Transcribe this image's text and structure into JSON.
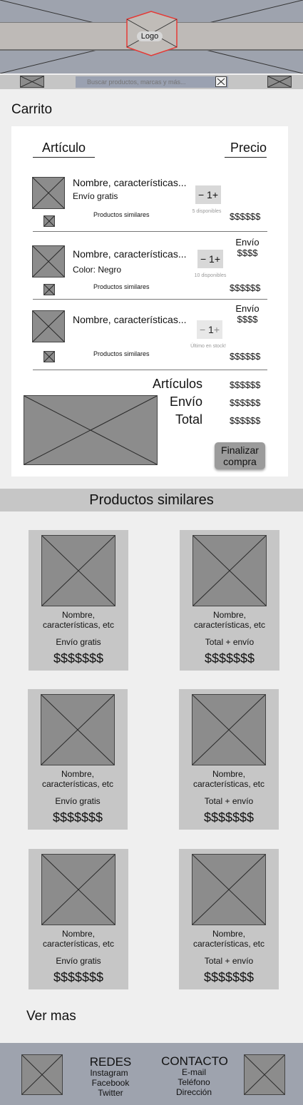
{
  "header": {
    "logo_label": "Logo"
  },
  "search": {
    "placeholder": "Buscar productos, marcas y más..."
  },
  "cart": {
    "title": "Carrito",
    "col_item": "Artículo",
    "col_price": "Precio",
    "items": [
      {
        "name": "Nombre, características...",
        "detail": "Envío gratis",
        "similar": "Productos similares",
        "qty": "1",
        "availability": "5 disponibles",
        "shipping_label": "",
        "shipping_price": "",
        "price": "$$$$$$"
      },
      {
        "name": "Nombre, características...",
        "detail": "Color: Negro",
        "similar": "Productos similares",
        "qty": "1",
        "availability": "10 disponibles",
        "shipping_label": "Envío",
        "shipping_price": "$$$$",
        "price": "$$$$$$"
      },
      {
        "name": "Nombre, características...",
        "detail": "",
        "similar": "Productos similares",
        "qty": "1",
        "availability": "Último en stock!",
        "shipping_label": "Envío",
        "shipping_price": "$$$$",
        "price": "$$$$$$"
      }
    ],
    "summary": {
      "items_label": "Artículos",
      "items_value": "$$$$$$",
      "shipping_label": "Envío",
      "shipping_value": "$$$$$$",
      "total_label": "Total",
      "total_value": "$$$$$$"
    },
    "checkout_line1": "Finalizar",
    "checkout_line2": "compra"
  },
  "similar": {
    "title": "Productos similares",
    "products": [
      {
        "name_line1": "Nombre,",
        "name_line2": "características, etc",
        "shipping": "Envío gratis",
        "price": "$$$$$$$"
      },
      {
        "name_line1": "Nombre,",
        "name_line2": "características, etc",
        "shipping": "Total + envío",
        "price": "$$$$$$$"
      },
      {
        "name_line1": "Nombre,",
        "name_line2": "características, etc",
        "shipping": "Envío gratis",
        "price": "$$$$$$$"
      },
      {
        "name_line1": "Nombre,",
        "name_line2": "características, etc",
        "shipping": "Total + envío",
        "price": "$$$$$$$"
      },
      {
        "name_line1": "Nombre,",
        "name_line2": "características, etc",
        "shipping": "Envío gratis",
        "price": "$$$$$$$"
      },
      {
        "name_line1": "Nombre,",
        "name_line2": "características, etc",
        "shipping": "Total + envío",
        "price": "$$$$$$$"
      }
    ],
    "see_more": "Ver mas"
  },
  "footer": {
    "social_title": "REDES",
    "social_items": [
      "Instagram",
      "Facebook",
      "Twitter"
    ],
    "contact_title": "CONTACTO",
    "contact_items": [
      "E-mail",
      "Teléfono",
      "Dirección"
    ]
  },
  "colors": {
    "header_bg": "#9ea3ae",
    "logo_outline": "#e53935",
    "checkout_bg": "#9b9b9b"
  }
}
